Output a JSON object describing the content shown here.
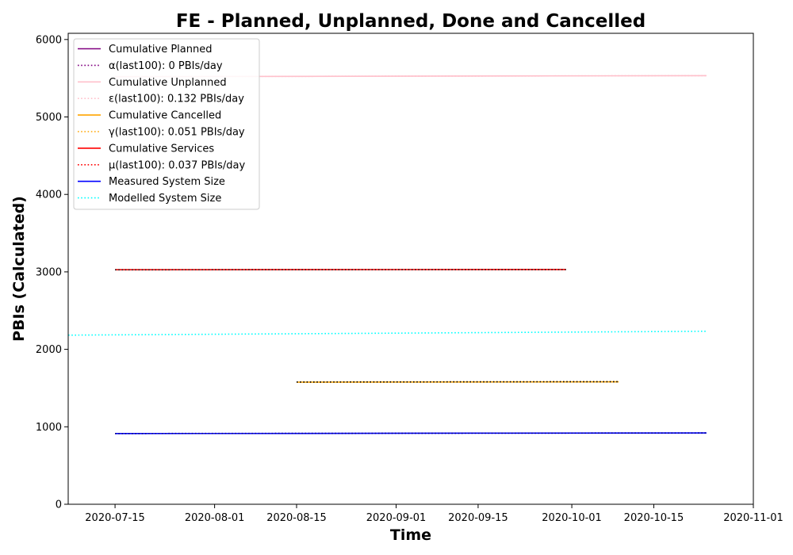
{
  "chart_data": {
    "type": "line",
    "title": "FE - Planned, Unplanned, Done  and Cancelled",
    "xlabel": "Time",
    "ylabel": "PBIs (Calculated)",
    "xlim": [
      "2020-07-07",
      "2020-11-01"
    ],
    "ylim": [
      0,
      6080
    ],
    "x_ticks": [
      "2020-07-15",
      "2020-08-01",
      "2020-08-15",
      "2020-09-01",
      "2020-09-15",
      "2020-10-01",
      "2020-10-15",
      "2020-11-01"
    ],
    "y_ticks": [
      0,
      1000,
      2000,
      3000,
      4000,
      5000,
      6000
    ],
    "grid": false,
    "legend_position": "top-left",
    "series": [
      {
        "name": "Cumulative Planned",
        "color": "#800080",
        "style": "solid",
        "points": []
      },
      {
        "name": "α(last100): 0 PBIs/day",
        "color": "#800080",
        "style": "dotted",
        "points": []
      },
      {
        "name": "Cumulative Unplanned",
        "color": "#ffc0cb",
        "style": "solid",
        "points": [
          [
            "2020-07-15",
            5520
          ],
          [
            "2020-10-24",
            5533
          ]
        ]
      },
      {
        "name": "ε(last100): 0.132 PBIs/day",
        "color": "#ffc0cb",
        "style": "dotted",
        "points": [
          [
            "2020-07-15",
            5520
          ],
          [
            "2020-10-24",
            5533
          ]
        ]
      },
      {
        "name": "Cumulative Cancelled",
        "color": "#ffa500",
        "style": "solid",
        "points": [
          [
            "2020-08-15",
            1576
          ],
          [
            "2020-10-09",
            1580
          ]
        ]
      },
      {
        "name": "γ(last100): 0.051 PBIs/day",
        "color": "#ffa500",
        "style": "dotted",
        "points": [
          [
            "2020-08-15",
            1576
          ],
          [
            "2020-10-09",
            1580
          ]
        ]
      },
      {
        "name": "Cumulative Services",
        "color": "#ff0000",
        "style": "solid",
        "points": [
          [
            "2020-07-15",
            3028
          ],
          [
            "2020-09-30",
            3031
          ]
        ]
      },
      {
        "name": "μ(last100): 0.037 PBIs/day",
        "color": "#ff0000",
        "style": "dotted",
        "points": [
          [
            "2020-07-15",
            3028
          ],
          [
            "2020-09-30",
            3031
          ]
        ]
      },
      {
        "name": "Measured System Size",
        "color": "#0000ff",
        "style": "solid",
        "points": [
          [
            "2020-07-15",
            913
          ],
          [
            "2020-08-15",
            914
          ],
          [
            "2020-09-15",
            918
          ],
          [
            "2020-10-24",
            920
          ]
        ]
      },
      {
        "name": "Modelled System Size",
        "color": "#00ffff",
        "style": "dotted",
        "points": [
          [
            "2020-07-07",
            2183
          ],
          [
            "2020-10-24",
            2233
          ]
        ]
      },
      {
        "name": "",
        "color": "#000080",
        "style": "dotted",
        "points": [
          [
            "2020-07-15",
            913
          ],
          [
            "2020-10-24",
            920
          ]
        ]
      },
      {
        "name": "",
        "color": "#000000",
        "style": "dotted",
        "points": [
          [
            "2020-08-15",
            1578
          ],
          [
            "2020-10-09",
            1582
          ]
        ]
      },
      {
        "name": "",
        "color": "#222222",
        "style": "dotted",
        "points": [
          [
            "2020-07-15",
            3027
          ],
          [
            "2020-09-30",
            3030
          ]
        ]
      }
    ]
  }
}
